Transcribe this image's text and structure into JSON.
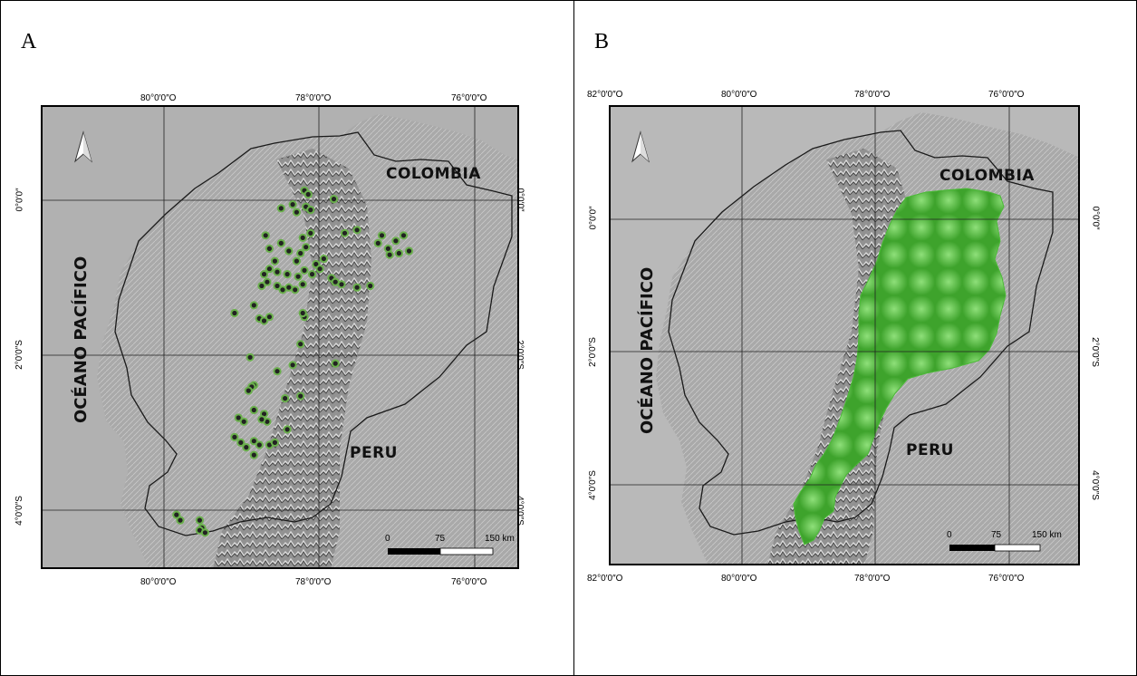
{
  "panels": [
    {
      "label": "A",
      "top_ticks": [
        "80°0′0″O",
        "78°0′0″O",
        "76°0′0″O"
      ],
      "bottom_ticks": [
        "80°0′0″O",
        "78°0′0″O",
        "76°0′0″O"
      ],
      "left_ticks": [
        "0°0′0″",
        "2°0′0″S",
        "4°0′0″S"
      ],
      "right_ticks": [
        "0°0′0″",
        "2°0′0″S",
        "4°0′0″S"
      ],
      "countries": {
        "colombia": "COLOMBIA",
        "peru": "PERU"
      },
      "ocean": "OCÉANO PACÍFICO",
      "scale": {
        "t0": "0",
        "t1": "75",
        "t2": "150 km"
      },
      "points_lonlat": [
        [
          -77.4,
          0.13
        ],
        [
          -77.35,
          0.08
        ],
        [
          -77.02,
          0.02
        ],
        [
          -77.55,
          -0.05
        ],
        [
          -77.38,
          -0.08
        ],
        [
          -77.7,
          -0.1
        ],
        [
          -77.5,
          -0.15
        ],
        [
          -77.32,
          -0.12
        ],
        [
          -76.88,
          -0.42
        ],
        [
          -76.72,
          -0.38
        ],
        [
          -76.4,
          -0.45
        ],
        [
          -76.45,
          -0.55
        ],
        [
          -76.22,
          -0.52
        ],
        [
          -76.32,
          -0.62
        ],
        [
          -76.18,
          -0.68
        ],
        [
          -76.3,
          -0.7
        ],
        [
          -76.05,
          -0.65
        ],
        [
          -76.12,
          -0.45
        ],
        [
          -77.9,
          -0.45
        ],
        [
          -77.7,
          -0.55
        ],
        [
          -77.42,
          -0.48
        ],
        [
          -77.32,
          -0.42
        ],
        [
          -77.85,
          -0.62
        ],
        [
          -77.6,
          -0.65
        ],
        [
          -77.45,
          -0.68
        ],
        [
          -77.38,
          -0.6
        ],
        [
          -77.78,
          -0.78
        ],
        [
          -77.5,
          -0.78
        ],
        [
          -77.25,
          -0.82
        ],
        [
          -77.15,
          -0.75
        ],
        [
          -77.92,
          -0.95
        ],
        [
          -77.85,
          -0.88
        ],
        [
          -77.75,
          -0.92
        ],
        [
          -77.62,
          -0.95
        ],
        [
          -77.48,
          -0.98
        ],
        [
          -77.4,
          -0.9
        ],
        [
          -77.3,
          -0.95
        ],
        [
          -77.2,
          -0.88
        ],
        [
          -77.05,
          -1.0
        ],
        [
          -77.0,
          -1.05
        ],
        [
          -76.92,
          -1.08
        ],
        [
          -76.72,
          -1.12
        ],
        [
          -76.55,
          -1.1
        ],
        [
          -77.95,
          -1.1
        ],
        [
          -77.88,
          -1.05
        ],
        [
          -77.75,
          -1.1
        ],
        [
          -77.68,
          -1.15
        ],
        [
          -77.6,
          -1.12
        ],
        [
          -77.52,
          -1.15
        ],
        [
          -77.42,
          -1.08
        ],
        [
          -78.3,
          -1.45
        ],
        [
          -78.05,
          -1.35
        ],
        [
          -77.98,
          -1.52
        ],
        [
          -77.92,
          -1.55
        ],
        [
          -77.85,
          -1.5
        ],
        [
          -77.4,
          -1.5
        ],
        [
          -77.42,
          -1.45
        ],
        [
          -77.45,
          -1.85
        ],
        [
          -78.1,
          -2.02
        ],
        [
          -77.55,
          -2.12
        ],
        [
          -77.75,
          -2.2
        ],
        [
          -77.0,
          -2.1
        ],
        [
          -78.05,
          -2.38
        ],
        [
          -78.08,
          -2.4
        ],
        [
          -78.12,
          -2.45
        ],
        [
          -77.65,
          -2.55
        ],
        [
          -77.45,
          -2.52
        ],
        [
          -78.05,
          -2.7
        ],
        [
          -77.92,
          -2.75
        ],
        [
          -77.88,
          -2.85
        ],
        [
          -78.25,
          -2.8
        ],
        [
          -78.18,
          -2.85
        ],
        [
          -78.3,
          -3.05
        ],
        [
          -78.22,
          -3.12
        ],
        [
          -78.15,
          -3.18
        ],
        [
          -78.05,
          -3.1
        ],
        [
          -77.98,
          -3.15
        ],
        [
          -77.85,
          -3.15
        ],
        [
          -77.78,
          -3.12
        ],
        [
          -77.62,
          -2.95
        ],
        [
          -78.05,
          -3.28
        ],
        [
          -77.95,
          -2.82
        ],
        [
          -79.05,
          -4.05
        ],
        [
          -79.0,
          -4.12
        ],
        [
          -78.75,
          -4.12
        ],
        [
          -78.72,
          -4.22
        ],
        [
          -78.75,
          -4.25
        ],
        [
          -78.68,
          -4.28
        ]
      ]
    },
    {
      "label": "B",
      "top_ticks": [
        "82°0′0″O",
        "80°0′0″O",
        "78°0′0″O",
        "76°0′0″O"
      ],
      "bottom_ticks": [
        "82°0′0″O",
        "80°0′0″O",
        "78°0′0″O",
        "76°0′0″O"
      ],
      "left_ticks": [
        "0°0′0″",
        "2°0′0″S",
        "4°0′0″S"
      ],
      "right_ticks": [
        "0°0′0″",
        "2°0′0″S",
        "4°0′0″S"
      ],
      "countries": {
        "colombia": "COLOMBIA",
        "peru": "PERU"
      },
      "ocean": "OCÉANO PACÍFICO",
      "scale": {
        "t0": "0",
        "t1": "75",
        "t2": "150 km"
      }
    }
  ],
  "colors": {
    "land": "#9a9a9a",
    "sea": "#bdbdbd",
    "relief_light": "#e6e6e6",
    "relief_dark": "#4a4a4a",
    "points": "#6ab04c",
    "distribution": "#5cc84a",
    "border": "#1a1a1a"
  },
  "icons": {
    "north_arrow": "north-arrow-icon"
  }
}
